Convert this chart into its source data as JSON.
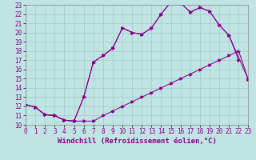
{
  "xlabel": "Windchill (Refroidissement éolien,°C)",
  "xlim": [
    0,
    23
  ],
  "ylim": [
    10,
    23
  ],
  "xticks": [
    0,
    1,
    2,
    3,
    4,
    5,
    6,
    7,
    8,
    9,
    10,
    11,
    12,
    13,
    14,
    15,
    16,
    17,
    18,
    19,
    20,
    21,
    22,
    23
  ],
  "yticks": [
    10,
    11,
    12,
    13,
    14,
    15,
    16,
    17,
    18,
    19,
    20,
    21,
    22,
    23
  ],
  "bg_color": "#c0e4e4",
  "line_color": "#880088",
  "grid_color": "#a8c8c8",
  "line1_x": [
    0,
    1,
    2,
    3,
    4,
    5,
    6,
    7,
    8,
    9,
    10,
    11,
    12,
    13,
    14,
    15,
    16,
    17,
    18,
    19,
    20,
    21,
    22,
    23
  ],
  "line1_y": [
    12.2,
    11.9,
    11.1,
    11.0,
    10.5,
    10.4,
    10.4,
    10.4,
    11.0,
    11.5,
    12.0,
    12.5,
    13.0,
    13.5,
    14.0,
    14.5,
    15.0,
    15.5,
    16.0,
    16.5,
    17.0,
    17.5,
    18.0,
    14.9
  ],
  "line2_x": [
    0,
    1,
    2,
    3,
    4,
    5,
    6,
    7,
    8,
    9,
    10,
    11,
    12,
    13,
    14,
    15,
    16,
    17,
    18,
    19,
    20,
    21,
    22
  ],
  "line2_y": [
    12.2,
    11.9,
    11.1,
    11.0,
    10.5,
    10.4,
    13.0,
    16.8,
    17.5,
    18.3,
    20.5,
    20.0,
    19.8,
    20.5,
    22.0,
    23.3,
    23.2,
    22.2,
    22.7,
    22.3,
    20.8,
    19.7,
    17.0
  ],
  "line3_x": [
    0,
    1,
    2,
    3,
    4,
    5,
    6,
    7,
    8,
    9,
    10,
    11,
    12,
    13,
    14,
    15,
    16,
    17,
    18,
    19,
    20,
    21,
    23
  ],
  "line3_y": [
    12.2,
    11.9,
    11.1,
    11.0,
    10.5,
    10.4,
    13.0,
    16.8,
    17.5,
    18.3,
    20.5,
    20.0,
    19.8,
    20.5,
    22.0,
    23.3,
    23.2,
    22.2,
    22.7,
    22.3,
    20.8,
    19.7,
    14.9
  ],
  "font_size_xlabel": 6.5,
  "font_size_ticks": 5.5
}
